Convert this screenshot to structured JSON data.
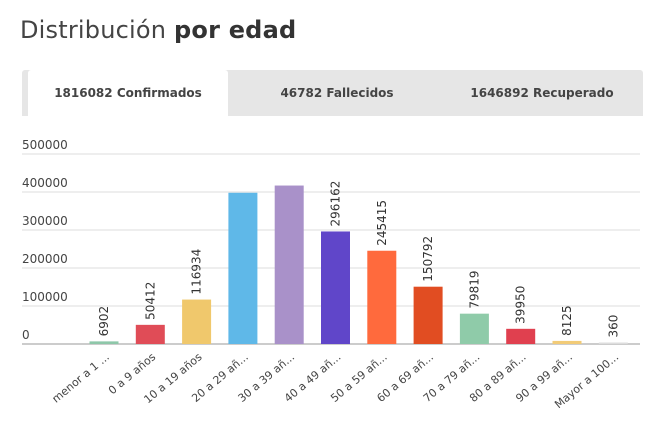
{
  "header": {
    "title_regular": "Distribución",
    "title_bold": "por edad"
  },
  "tabs": [
    {
      "label": "1816082 Confirmados",
      "active": true
    },
    {
      "label": "46782 Fallecidos",
      "active": false
    },
    {
      "label": "1646892 Recuperado",
      "active": false
    }
  ],
  "chart_data": {
    "type": "bar",
    "categories": [
      "menor a 1 ...",
      "0 a 9 años",
      "10 a 19 años",
      "20 a 29 añ...",
      "30 a 39 añ...",
      "40 a 49 añ...",
      "50 a 59 añ...",
      "60 a 69 añ...",
      "70 a 79 añ...",
      "80 a 89 añ...",
      "90 a 99 añ...",
      "Mayor a 100..."
    ],
    "values": [
      6902,
      50412,
      116934,
      398000,
      417000,
      296162,
      245415,
      150792,
      79819,
      39950,
      8125,
      360
    ],
    "data_labels": [
      "6902",
      "50412",
      "116934",
      "",
      "",
      "296162",
      "245415",
      "150792",
      "79819",
      "39950",
      "8125",
      "360"
    ],
    "colors": [
      "#8ec7a9",
      "#e04c57",
      "#f0c86c",
      "#5fb8e8",
      "#a991c9",
      "#6046c9",
      "#ff6a3d",
      "#e14d22",
      "#8fcba9",
      "#e0404f",
      "#f2cb77",
      "#dddddd"
    ],
    "yticks": [
      0,
      100000,
      200000,
      300000,
      400000,
      500000
    ],
    "ylim": [
      0,
      500000
    ],
    "grid": true,
    "xlabel": "",
    "ylabel": ""
  }
}
